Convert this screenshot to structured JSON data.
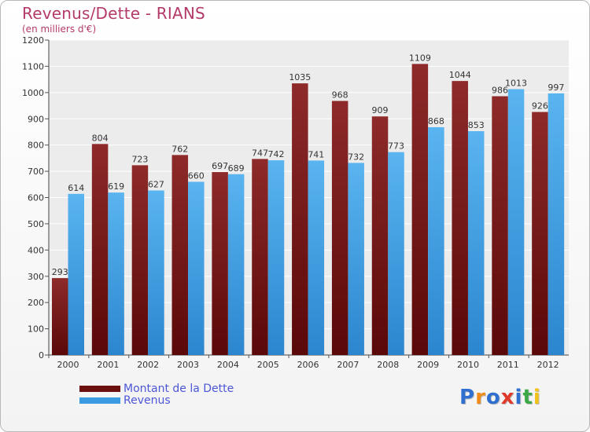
{
  "chart_data": {
    "type": "bar",
    "title": "Revenus/Dette - RIANS",
    "subtitle": "(en milliers d'€)",
    "categories": [
      "2000",
      "2001",
      "2002",
      "2003",
      "2004",
      "2005",
      "2006",
      "2007",
      "2008",
      "2009",
      "2010",
      "2011",
      "2012"
    ],
    "series": [
      {
        "name": "Montant de la Dette",
        "color": "#8b1a1a",
        "values": [
          293,
          804,
          723,
          762,
          697,
          747,
          1035,
          968,
          909,
          1109,
          1044,
          986,
          926
        ]
      },
      {
        "name": "Revenus",
        "color": "#3a9be0",
        "values": [
          614,
          619,
          627,
          660,
          689,
          742,
          741,
          732,
          773,
          868,
          853,
          1013,
          997
        ]
      }
    ],
    "ylim": [
      0,
      1200
    ],
    "yticks": [
      0,
      100,
      200,
      300,
      400,
      500,
      600,
      700,
      800,
      900,
      1000,
      1100,
      1200
    ],
    "grid": true,
    "xlabel": "",
    "ylabel": ""
  },
  "legend": {
    "items": [
      {
        "label": "Montant de la Dette",
        "color": "#6b0f0f"
      },
      {
        "label": "Revenus",
        "color": "#3a9be0"
      }
    ]
  },
  "logo": {
    "letters": [
      "P",
      "r",
      "o",
      "x",
      "i",
      "t",
      "i"
    ],
    "colors": [
      "#2f6fd0",
      "#f08c1a",
      "#2f6fd0",
      "#e03a2a",
      "#2f6fd0",
      "#3aa845",
      "#f0c21a"
    ]
  }
}
